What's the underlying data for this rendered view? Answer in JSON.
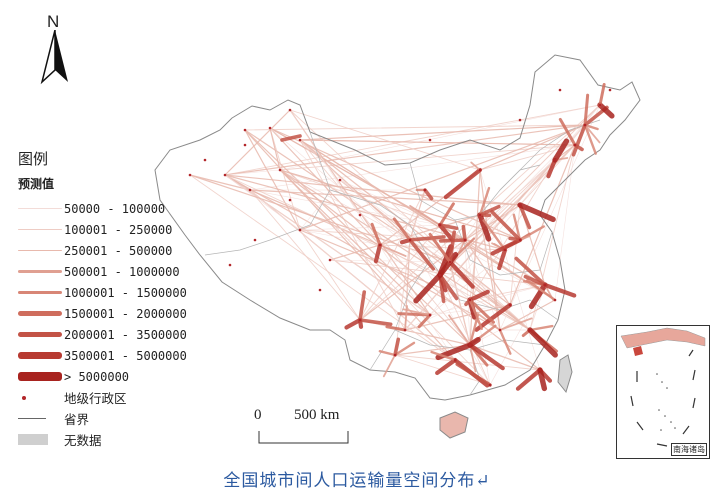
{
  "north_label": "N",
  "legend": {
    "title": "图例",
    "subtitle": "预测值",
    "classes": [
      {
        "label": "50000 - 100000",
        "color": "#f3dcd8",
        "weight": 1
      },
      {
        "label": "100001 - 250000",
        "color": "#eeccc4",
        "weight": 1.5
      },
      {
        "label": "250001 - 500000",
        "color": "#e8b9ad",
        "weight": 2
      },
      {
        "label": "500001 - 1000000",
        "color": "#e0a092",
        "weight": 3
      },
      {
        "label": "1000001 - 1500000",
        "color": "#d88676",
        "weight": 4
      },
      {
        "label": "1500001 - 2000000",
        "color": "#cf6d5d",
        "weight": 5
      },
      {
        "label": "2000001 - 3500000",
        "color": "#c35346",
        "weight": 6
      },
      {
        "label": "3500001 - 5000000",
        "color": "#b73a31",
        "weight": 7
      },
      {
        "label": "> 5000000",
        "color": "#a8231f",
        "weight": 9
      }
    ],
    "symbols": {
      "city": "地级行政区",
      "province_border": "省界",
      "no_data": "无数据"
    }
  },
  "scale_bar": {
    "start": "0",
    "end": "500 km"
  },
  "inset_label": "南海诸岛",
  "caption": "全国城市间人口运输量空间分布↵",
  "colors": {
    "flow_dark": "#a8231f",
    "flow_light": "#f3dcd8",
    "border": "#9a9a9a",
    "caption": "#2c5aa0"
  }
}
